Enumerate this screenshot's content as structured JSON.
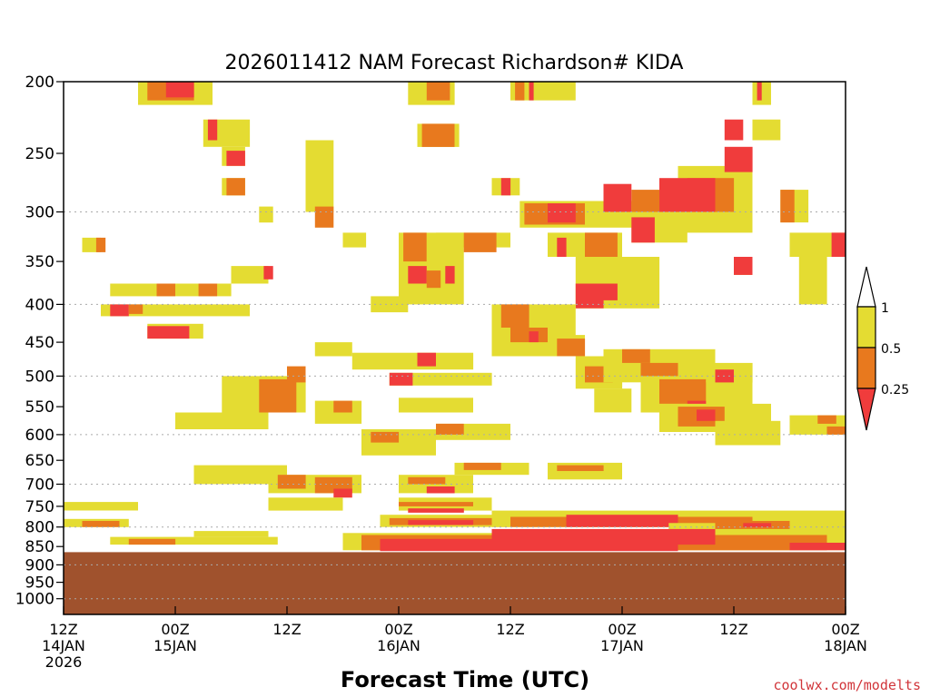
{
  "chart_data": {
    "type": "heatmap",
    "title": "2026011412 NAM Forecast Richardson# KIDA",
    "xlabel": "Forecast Time (UTC)",
    "ylabel": "",
    "credit": "coolwx.com/modelts",
    "y_scale": "log-pressure",
    "ylim": [
      1050,
      200
    ],
    "y_ticks": [
      200,
      250,
      300,
      350,
      400,
      450,
      500,
      550,
      600,
      650,
      700,
      750,
      800,
      850,
      900,
      950,
      1000
    ],
    "y_gridlines": [
      300,
      400,
      500,
      600,
      700,
      800,
      900,
      1000
    ],
    "x_start_hour": 0,
    "x_end_hour": 84,
    "x_ticks": [
      {
        "hour": 0,
        "label": "12Z",
        "date": "14JAN",
        "year": "2026"
      },
      {
        "hour": 12,
        "label": "00Z",
        "date": "15JAN",
        "year": ""
      },
      {
        "hour": 24,
        "label": "12Z",
        "date": "",
        "year": ""
      },
      {
        "hour": 36,
        "label": "00Z",
        "date": "16JAN",
        "year": ""
      },
      {
        "hour": 48,
        "label": "12Z",
        "date": "",
        "year": ""
      },
      {
        "hour": 60,
        "label": "00Z",
        "date": "17JAN",
        "year": ""
      },
      {
        "hour": 72,
        "label": "12Z",
        "date": "",
        "year": ""
      },
      {
        "hour": 84,
        "label": "00Z",
        "date": "18JAN",
        "year": ""
      }
    ],
    "legend": {
      "levels": [
        "0.25",
        "0.5",
        "1"
      ],
      "colors": {
        "low": "#f03c3c",
        "mid": "#e8791e",
        "high": "#e4dc32",
        "top": "#ffffff"
      }
    },
    "terrain": {
      "surface_pressure": 865,
      "color": "#a0522d"
    },
    "colors": {
      "red": "#f03c3c",
      "orange": "#e8791e",
      "yellow": "#e4dc32",
      "grid": "#aaaaaa"
    },
    "regions": [
      {
        "cat": "Y",
        "x0": 8,
        "x1": 16,
        "p0": 200,
        "p1": 215
      },
      {
        "cat": "O",
        "x0": 9,
        "x1": 14,
        "p0": 200,
        "p1": 212
      },
      {
        "cat": "R",
        "x0": 11,
        "x1": 14,
        "p0": 200,
        "p1": 210
      },
      {
        "cat": "Y",
        "x0": 15,
        "x1": 20,
        "p0": 225,
        "p1": 245
      },
      {
        "cat": "R",
        "x0": 15.5,
        "x1": 16.5,
        "p0": 225,
        "p1": 240
      },
      {
        "cat": "Y",
        "x0": 17,
        "x1": 19.5,
        "p0": 245,
        "p1": 260
      },
      {
        "cat": "R",
        "x0": 17.5,
        "x1": 19.5,
        "p0": 248,
        "p1": 260
      },
      {
        "cat": "Y",
        "x0": 17,
        "x1": 19.5,
        "p0": 270,
        "p1": 285
      },
      {
        "cat": "O",
        "x0": 17.5,
        "x1": 19.5,
        "p0": 270,
        "p1": 285
      },
      {
        "cat": "Y",
        "x0": 21,
        "x1": 22.5,
        "p0": 295,
        "p1": 310
      },
      {
        "cat": "Y",
        "x0": 2,
        "x1": 4,
        "p0": 325,
        "p1": 340
      },
      {
        "cat": "O",
        "x0": 3.5,
        "x1": 4.5,
        "p0": 325,
        "p1": 340
      },
      {
        "cat": "Y",
        "x0": 5,
        "x1": 18,
        "p0": 375,
        "p1": 390
      },
      {
        "cat": "O",
        "x0": 10,
        "x1": 12,
        "p0": 375,
        "p1": 390
      },
      {
        "cat": "O",
        "x0": 14.5,
        "x1": 16.5,
        "p0": 375,
        "p1": 390
      },
      {
        "cat": "Y",
        "x0": 4,
        "x1": 20,
        "p0": 400,
        "p1": 415
      },
      {
        "cat": "R",
        "x0": 5,
        "x1": 7,
        "p0": 400,
        "p1": 415
      },
      {
        "cat": "O",
        "x0": 7,
        "x1": 8.5,
        "p0": 400,
        "p1": 412
      },
      {
        "cat": "Y",
        "x0": 9,
        "x1": 15,
        "p0": 425,
        "p1": 445
      },
      {
        "cat": "R",
        "x0": 9,
        "x1": 13.5,
        "p0": 428,
        "p1": 445
      },
      {
        "cat": "Y",
        "x0": 18,
        "x1": 22,
        "p0": 355,
        "p1": 375
      },
      {
        "cat": "R",
        "x0": 21.5,
        "x1": 22.5,
        "p0": 355,
        "p1": 370
      },
      {
        "cat": "Y",
        "x0": 26,
        "x1": 29,
        "p0": 240,
        "p1": 300
      },
      {
        "cat": "O",
        "x0": 27,
        "x1": 29,
        "p0": 295,
        "p1": 315
      },
      {
        "cat": "Y",
        "x0": 30,
        "x1": 32.5,
        "p0": 320,
        "p1": 335
      },
      {
        "cat": "Y",
        "x0": 36,
        "x1": 43,
        "p0": 320,
        "p1": 400
      },
      {
        "cat": "O",
        "x0": 36.5,
        "x1": 39,
        "p0": 320,
        "p1": 350
      },
      {
        "cat": "R",
        "x0": 37,
        "x1": 39,
        "p0": 355,
        "p1": 375
      },
      {
        "cat": "O",
        "x0": 39,
        "x1": 40.5,
        "p0": 360,
        "p1": 380
      },
      {
        "cat": "R",
        "x0": 41,
        "x1": 42,
        "p0": 355,
        "p1": 375
      },
      {
        "cat": "Y",
        "x0": 40,
        "x1": 48,
        "p0": 320,
        "p1": 335
      },
      {
        "cat": "O",
        "x0": 43,
        "x1": 46.5,
        "p0": 320,
        "p1": 340
      },
      {
        "cat": "Y",
        "x0": 37,
        "x1": 42,
        "p0": 200,
        "p1": 215
      },
      {
        "cat": "O",
        "x0": 39,
        "x1": 41.5,
        "p0": 200,
        "p1": 212
      },
      {
        "cat": "Y",
        "x0": 38,
        "x1": 42.5,
        "p0": 228,
        "p1": 245
      },
      {
        "cat": "O",
        "x0": 38.5,
        "x1": 42,
        "p0": 228,
        "p1": 245
      },
      {
        "cat": "Y",
        "x0": 48,
        "x1": 55,
        "p0": 200,
        "p1": 212
      },
      {
        "cat": "O",
        "x0": 48.5,
        "x1": 49.5,
        "p0": 200,
        "p1": 212
      },
      {
        "cat": "R",
        "x0": 50,
        "x1": 50.5,
        "p0": 200,
        "p1": 212
      },
      {
        "cat": "Y",
        "x0": 46,
        "x1": 49,
        "p0": 270,
        "p1": 285
      },
      {
        "cat": "R",
        "x0": 47,
        "x1": 48,
        "p0": 270,
        "p1": 285
      },
      {
        "cat": "Y",
        "x0": 49,
        "x1": 70,
        "p0": 290,
        "p1": 315
      },
      {
        "cat": "O",
        "x0": 49.5,
        "x1": 56,
        "p0": 292,
        "p1": 312
      },
      {
        "cat": "R",
        "x0": 52,
        "x1": 55,
        "p0": 292,
        "p1": 310
      },
      {
        "cat": "R",
        "x0": 58,
        "x1": 61,
        "p0": 275,
        "p1": 300
      },
      {
        "cat": "R",
        "x0": 64,
        "x1": 68,
        "p0": 270,
        "p1": 300
      },
      {
        "cat": "O",
        "x0": 61,
        "x1": 64,
        "p0": 280,
        "p1": 300
      },
      {
        "cat": "Y",
        "x0": 52,
        "x1": 60,
        "p0": 320,
        "p1": 345
      },
      {
        "cat": "O",
        "x0": 56,
        "x1": 59.5,
        "p0": 320,
        "p1": 345
      },
      {
        "cat": "R",
        "x0": 53,
        "x1": 54,
        "p0": 325,
        "p1": 345
      },
      {
        "cat": "Y",
        "x0": 55,
        "x1": 64,
        "p0": 345,
        "p1": 405
      },
      {
        "cat": "R",
        "x0": 55,
        "x1": 58,
        "p0": 375,
        "p1": 405
      },
      {
        "cat": "R",
        "x0": 57,
        "x1": 59.5,
        "p0": 375,
        "p1": 395
      },
      {
        "cat": "Y",
        "x0": 61,
        "x1": 67,
        "p0": 305,
        "p1": 330
      },
      {
        "cat": "R",
        "x0": 61,
        "x1": 63.5,
        "p0": 305,
        "p1": 330
      },
      {
        "cat": "Y",
        "x0": 66,
        "x1": 74,
        "p0": 260,
        "p1": 320
      },
      {
        "cat": "O",
        "x0": 67,
        "x1": 72,
        "p0": 270,
        "p1": 300
      },
      {
        "cat": "R",
        "x0": 66,
        "x1": 70,
        "p0": 270,
        "p1": 300
      },
      {
        "cat": "R",
        "x0": 71,
        "x1": 74,
        "p0": 245,
        "p1": 265
      },
      {
        "cat": "Y",
        "x0": 74,
        "x1": 76,
        "p0": 200,
        "p1": 215
      },
      {
        "cat": "R",
        "x0": 74.5,
        "x1": 75,
        "p0": 200,
        "p1": 212
      },
      {
        "cat": "Y",
        "x0": 74,
        "x1": 77,
        "p0": 225,
        "p1": 240
      },
      {
        "cat": "R",
        "x0": 71,
        "x1": 73,
        "p0": 225,
        "p1": 240
      },
      {
        "cat": "Y",
        "x0": 77,
        "x1": 80,
        "p0": 280,
        "p1": 310
      },
      {
        "cat": "O",
        "x0": 77,
        "x1": 78.5,
        "p0": 280,
        "p1": 310
      },
      {
        "cat": "Y",
        "x0": 78,
        "x1": 84,
        "p0": 320,
        "p1": 345
      },
      {
        "cat": "R",
        "x0": 82.5,
        "x1": 84,
        "p0": 320,
        "p1": 345
      },
      {
        "cat": "Y",
        "x0": 72,
        "x1": 74,
        "p0": 345,
        "p1": 365
      },
      {
        "cat": "R",
        "x0": 72,
        "x1": 74,
        "p0": 345,
        "p1": 365
      },
      {
        "cat": "Y",
        "x0": 79,
        "x1": 82,
        "p0": 345,
        "p1": 400
      },
      {
        "cat": "Y",
        "x0": 33,
        "x1": 37,
        "p0": 390,
        "p1": 410
      },
      {
        "cat": "Y",
        "x0": 27,
        "x1": 31,
        "p0": 450,
        "p1": 470
      },
      {
        "cat": "Y",
        "x0": 31,
        "x1": 44,
        "p0": 465,
        "p1": 490
      },
      {
        "cat": "R",
        "x0": 38,
        "x1": 40,
        "p0": 465,
        "p1": 485
      },
      {
        "cat": "Y",
        "x0": 35,
        "x1": 46,
        "p0": 495,
        "p1": 515
      },
      {
        "cat": "R",
        "x0": 35,
        "x1": 37.5,
        "p0": 495,
        "p1": 515
      },
      {
        "cat": "Y",
        "x0": 17,
        "x1": 26,
        "p0": 500,
        "p1": 560
      },
      {
        "cat": "O",
        "x0": 21,
        "x1": 25,
        "p0": 505,
        "p1": 560
      },
      {
        "cat": "O",
        "x0": 24,
        "x1": 26,
        "p0": 485,
        "p1": 510
      },
      {
        "cat": "Y",
        "x0": 27,
        "x1": 32,
        "p0": 540,
        "p1": 580
      },
      {
        "cat": "O",
        "x0": 29,
        "x1": 31,
        "p0": 540,
        "p1": 560
      },
      {
        "cat": "Y",
        "x0": 12,
        "x1": 22,
        "p0": 560,
        "p1": 590
      },
      {
        "cat": "Y",
        "x0": 36,
        "x1": 44,
        "p0": 535,
        "p1": 560
      },
      {
        "cat": "Y",
        "x0": 40,
        "x1": 48,
        "p0": 580,
        "p1": 610
      },
      {
        "cat": "O",
        "x0": 40,
        "x1": 43,
        "p0": 580,
        "p1": 600
      },
      {
        "cat": "Y",
        "x0": 32,
        "x1": 40,
        "p0": 590,
        "p1": 640
      },
      {
        "cat": "O",
        "x0": 33,
        "x1": 36,
        "p0": 595,
        "p1": 615
      },
      {
        "cat": "Y",
        "x0": 14,
        "x1": 24,
        "p0": 660,
        "p1": 700
      },
      {
        "cat": "Y",
        "x0": 22,
        "x1": 32,
        "p0": 680,
        "p1": 720
      },
      {
        "cat": "O",
        "x0": 23,
        "x1": 26,
        "p0": 680,
        "p1": 710
      },
      {
        "cat": "O",
        "x0": 27,
        "x1": 31,
        "p0": 685,
        "p1": 720
      },
      {
        "cat": "R",
        "x0": 29,
        "x1": 31,
        "p0": 710,
        "p1": 730
      },
      {
        "cat": "Y",
        "x0": 36,
        "x1": 44,
        "p0": 680,
        "p1": 720
      },
      {
        "cat": "O",
        "x0": 37,
        "x1": 41,
        "p0": 685,
        "p1": 700
      },
      {
        "cat": "R",
        "x0": 39,
        "x1": 42,
        "p0": 705,
        "p1": 720
      },
      {
        "cat": "Y",
        "x0": 42,
        "x1": 50,
        "p0": 655,
        "p1": 680
      },
      {
        "cat": "O",
        "x0": 43,
        "x1": 47,
        "p0": 655,
        "p1": 670
      },
      {
        "cat": "Y",
        "x0": 52,
        "x1": 60,
        "p0": 655,
        "p1": 690
      },
      {
        "cat": "O",
        "x0": 53,
        "x1": 58,
        "p0": 660,
        "p1": 672
      },
      {
        "cat": "Y",
        "x0": 46,
        "x1": 55,
        "p0": 400,
        "p1": 470
      },
      {
        "cat": "O",
        "x0": 47,
        "x1": 50,
        "p0": 400,
        "p1": 430
      },
      {
        "cat": "O",
        "x0": 48,
        "x1": 52,
        "p0": 430,
        "p1": 450
      },
      {
        "cat": "R",
        "x0": 50,
        "x1": 51,
        "p0": 435,
        "p1": 450
      },
      {
        "cat": "Y",
        "x0": 52,
        "x1": 56,
        "p0": 440,
        "p1": 470
      },
      {
        "cat": "O",
        "x0": 53,
        "x1": 56,
        "p0": 445,
        "p1": 470
      },
      {
        "cat": "Y",
        "x0": 55,
        "x1": 60,
        "p0": 470,
        "p1": 520
      },
      {
        "cat": "O",
        "x0": 56,
        "x1": 59,
        "p0": 485,
        "p1": 510
      },
      {
        "cat": "Y",
        "x0": 57,
        "x1": 61,
        "p0": 520,
        "p1": 560
      },
      {
        "cat": "Y",
        "x0": 58,
        "x1": 70,
        "p0": 460,
        "p1": 510
      },
      {
        "cat": "O",
        "x0": 60,
        "x1": 63,
        "p0": 460,
        "p1": 480
      },
      {
        "cat": "O",
        "x0": 62,
        "x1": 66,
        "p0": 480,
        "p1": 510
      },
      {
        "cat": "Y",
        "x0": 62,
        "x1": 74,
        "p0": 500,
        "p1": 560
      },
      {
        "cat": "O",
        "x0": 64,
        "x1": 69,
        "p0": 505,
        "p1": 545
      },
      {
        "cat": "R",
        "x0": 67,
        "x1": 69,
        "p0": 540,
        "p1": 565
      },
      {
        "cat": "Y",
        "x0": 64,
        "x1": 76,
        "p0": 545,
        "p1": 595
      },
      {
        "cat": "O",
        "x0": 66,
        "x1": 71,
        "p0": 550,
        "p1": 585
      },
      {
        "cat": "R",
        "x0": 68,
        "x1": 70,
        "p0": 555,
        "p1": 575
      },
      {
        "cat": "Y",
        "x0": 70,
        "x1": 77,
        "p0": 575,
        "p1": 620
      },
      {
        "cat": "Y",
        "x0": 78,
        "x1": 84,
        "p0": 565,
        "p1": 600
      },
      {
        "cat": "O",
        "x0": 81,
        "x1": 83,
        "p0": 565,
        "p1": 580
      },
      {
        "cat": "O",
        "x0": 82,
        "x1": 84,
        "p0": 585,
        "p1": 600
      },
      {
        "cat": "Y",
        "x0": 69,
        "x1": 74,
        "p0": 480,
        "p1": 510
      },
      {
        "cat": "R",
        "x0": 70,
        "x1": 72,
        "p0": 490,
        "p1": 510
      },
      {
        "cat": "Y",
        "x0": 0,
        "x1": 8,
        "p0": 740,
        "p1": 760
      },
      {
        "cat": "Y",
        "x0": 0,
        "x1": 7,
        "p0": 780,
        "p1": 800
      },
      {
        "cat": "O",
        "x0": 2,
        "x1": 6,
        "p0": 785,
        "p1": 800
      },
      {
        "cat": "Y",
        "x0": 5,
        "x1": 23,
        "p0": 825,
        "p1": 845
      },
      {
        "cat": "O",
        "x0": 7,
        "x1": 12,
        "p0": 830,
        "p1": 845
      },
      {
        "cat": "Y",
        "x0": 14,
        "x1": 22,
        "p0": 810,
        "p1": 825
      },
      {
        "cat": "Y",
        "x0": 22,
        "x1": 30,
        "p0": 730,
        "p1": 760
      },
      {
        "cat": "Y",
        "x0": 36,
        "x1": 46,
        "p0": 730,
        "p1": 760
      },
      {
        "cat": "O",
        "x0": 36,
        "x1": 44,
        "p0": 740,
        "p1": 750
      },
      {
        "cat": "R",
        "x0": 37,
        "x1": 43,
        "p0": 755,
        "p1": 765
      },
      {
        "cat": "Y",
        "x0": 34,
        "x1": 48,
        "p0": 770,
        "p1": 800
      },
      {
        "cat": "O",
        "x0": 35,
        "x1": 46,
        "p0": 778,
        "p1": 795
      },
      {
        "cat": "R",
        "x0": 37,
        "x1": 44,
        "p0": 783,
        "p1": 795
      },
      {
        "cat": "Y",
        "x0": 46,
        "x1": 84,
        "p0": 760,
        "p1": 800
      },
      {
        "cat": "O",
        "x0": 48,
        "x1": 74,
        "p0": 775,
        "p1": 800
      },
      {
        "cat": "R",
        "x0": 54,
        "x1": 66,
        "p0": 770,
        "p1": 800
      },
      {
        "cat": "Y",
        "x0": 65,
        "x1": 84,
        "p0": 790,
        "p1": 820
      },
      {
        "cat": "O",
        "x0": 70,
        "x1": 78,
        "p0": 785,
        "p1": 805
      },
      {
        "cat": "R",
        "x0": 73,
        "x1": 76,
        "p0": 790,
        "p1": 800
      },
      {
        "cat": "Y",
        "x0": 30,
        "x1": 84,
        "p0": 815,
        "p1": 860
      },
      {
        "cat": "O",
        "x0": 32,
        "x1": 82,
        "p0": 820,
        "p1": 860
      },
      {
        "cat": "R",
        "x0": 34,
        "x1": 66,
        "p0": 830,
        "p1": 862
      },
      {
        "cat": "R",
        "x0": 46,
        "x1": 70,
        "p0": 805,
        "p1": 845
      },
      {
        "cat": "R",
        "x0": 78,
        "x1": 84,
        "p0": 840,
        "p1": 860
      }
    ]
  }
}
